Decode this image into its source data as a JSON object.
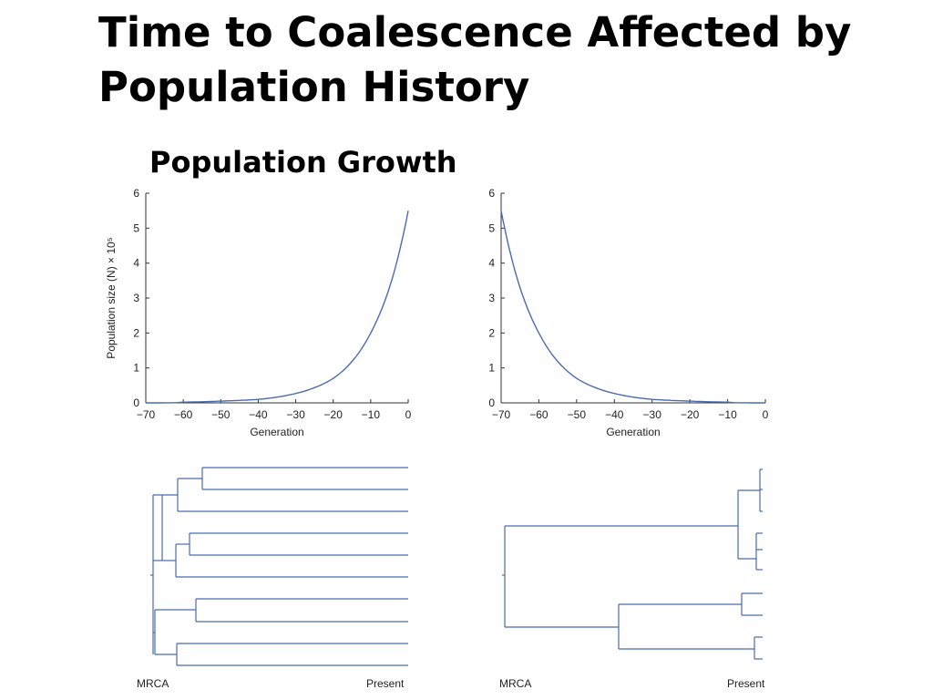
{
  "slide": {
    "title_line1": "Time to Coalescence Affected by",
    "title_line2": "Population History",
    "subtitle": "Population Growth"
  },
  "colors": {
    "curve": "#4a6bb0",
    "axis": "#333333",
    "tree": "#4a6bb0"
  },
  "chart_data": [
    {
      "type": "line",
      "xlabel": "Generation",
      "ylabel": "Population size (N) × 10⁵",
      "xlim": [
        -70,
        0
      ],
      "ylim": [
        0,
        6
      ],
      "x_ticks": [
        -70,
        -60,
        -50,
        -40,
        -30,
        -20,
        -10,
        0
      ],
      "y_ticks": [
        0,
        1,
        2,
        3,
        4,
        5,
        6
      ],
      "x": [
        -70,
        -60,
        -50,
        -40,
        -30,
        -20,
        -10,
        -5,
        0
      ],
      "y": [
        0.0,
        0.02,
        0.05,
        0.1,
        0.27,
        0.7,
        2.0,
        3.3,
        5.5
      ]
    },
    {
      "type": "line",
      "xlabel": "Generation",
      "ylabel": "",
      "xlim": [
        -70,
        0
      ],
      "ylim": [
        0,
        6
      ],
      "x_ticks": [
        -70,
        -60,
        -50,
        -40,
        -30,
        -20,
        -10,
        0
      ],
      "y_ticks": [
        0,
        1,
        2,
        3,
        4,
        5,
        6
      ],
      "x": [
        -70,
        -65,
        -60,
        -50,
        -40,
        -30,
        -20,
        -10,
        0
      ],
      "y": [
        5.5,
        3.3,
        2.0,
        0.7,
        0.27,
        0.1,
        0.05,
        0.02,
        0.0
      ]
    }
  ],
  "trees": [
    {
      "left_label": "MRCA",
      "right_label": "Present"
    },
    {
      "left_label": "MRCA",
      "right_label": "Present"
    }
  ]
}
